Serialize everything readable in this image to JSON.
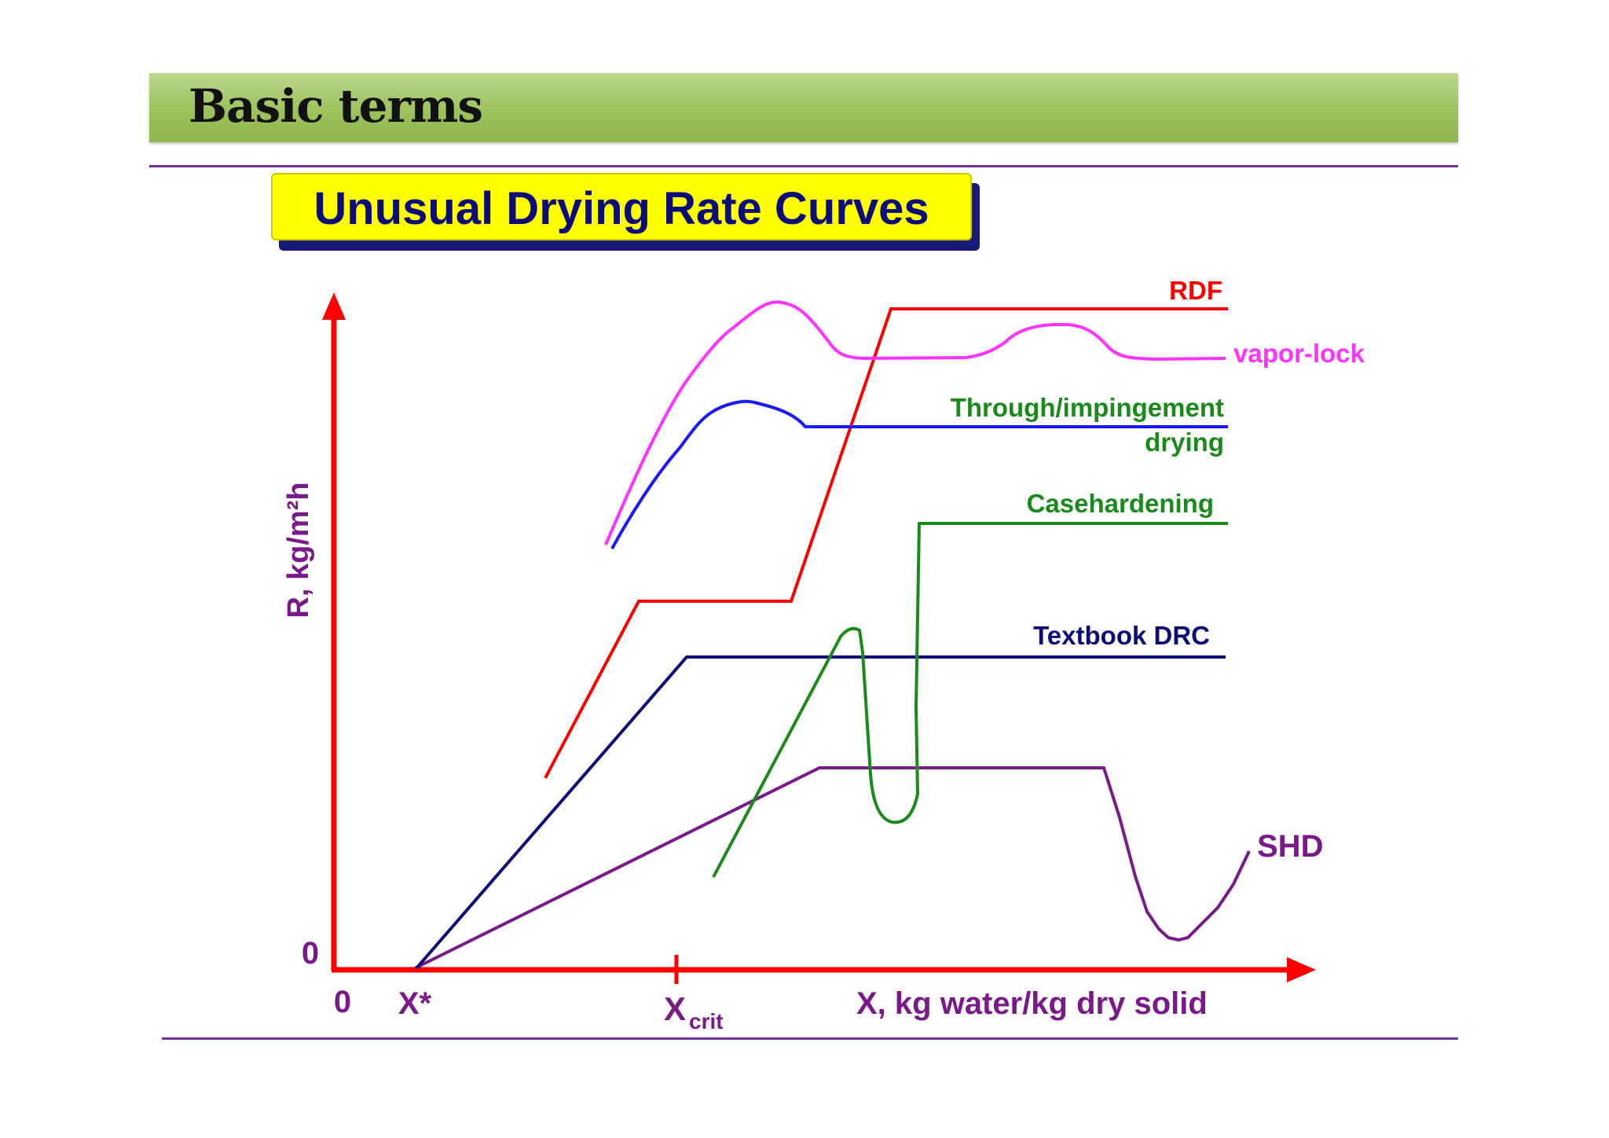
{
  "slide": {
    "header": "Basic terms"
  },
  "chart_data": {
    "type": "line",
    "title": "Unusual Drying Rate Curves",
    "xlabel": "X, kg water/kg dry solid",
    "ylabel": "R, kg/m²h",
    "x_ticks": [
      {
        "label": "0"
      },
      {
        "label": "X*"
      },
      {
        "label": "X",
        "sub": "crit"
      }
    ],
    "y_ticks": [
      {
        "label": "0"
      }
    ],
    "colors": {
      "axes": "#ff0000",
      "axis_text": "#7a1a8a"
    },
    "series": [
      {
        "name": "RDF",
        "color": "#ff0000"
      },
      {
        "name": "vapor-lock",
        "color": "#ff33ff"
      },
      {
        "name": "Through/impingement drying",
        "label_lines": [
          "Through/impingement",
          "drying"
        ],
        "color": "#1a1aff",
        "label_color": "#1a8a1a"
      },
      {
        "name": "Casehardening",
        "color": "#1a8a1a"
      },
      {
        "name": "Textbook DRC",
        "color": "#0d0d7a"
      },
      {
        "name": "SHD",
        "color": "#7a1a8a"
      }
    ]
  }
}
